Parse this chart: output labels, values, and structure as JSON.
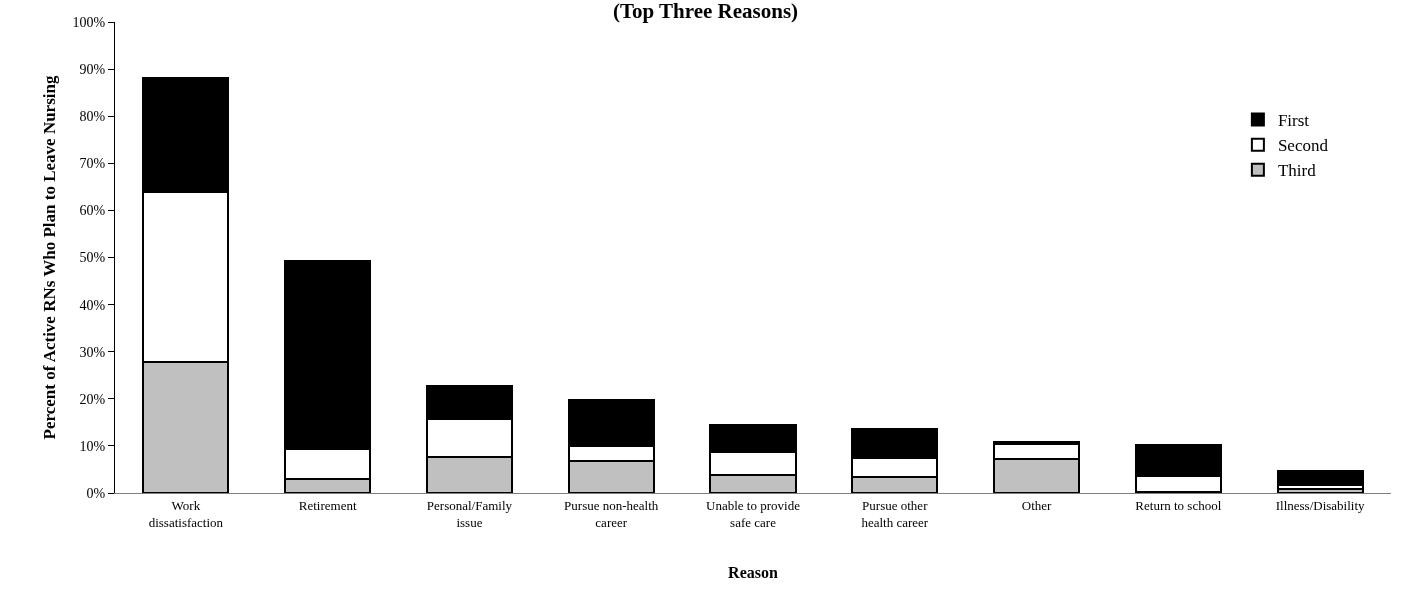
{
  "chart_data": {
    "type": "bar",
    "title": "(Top Three Reasons)",
    "xlabel": "Reason",
    "ylabel": "Percent of Active RNs Who Plan to Leave Nursing",
    "categories": [
      "Work dissatisfaction",
      "Retirement",
      "Personal/Family issue",
      "Pursue non-health career",
      "Unable to provide safe care",
      "Pursue other health career",
      "Other",
      "Return to school",
      "Illness/Disability"
    ],
    "stacked": true,
    "series": [
      {
        "name": "Third",
        "color": "#c0c0c0",
        "values": [
          27.8,
          2.9,
          7.6,
          6.8,
          3.8,
          3.4,
          7.2,
          0.3,
          0.8
        ]
      },
      {
        "name": "Second",
        "color": "#ffffff",
        "values": [
          36.1,
          6.5,
          8.2,
          3.1,
          4.8,
          4.0,
          3.3,
          3.3,
          1.0
        ]
      },
      {
        "name": "First",
        "color": "#000000",
        "values": [
          24.2,
          39.9,
          7.0,
          9.9,
          5.8,
          6.2,
          0.4,
          6.6,
          2.9
        ]
      }
    ],
    "ylim": [
      0,
      100
    ],
    "yticks": [
      {
        "value": 0,
        "label": "0%"
      },
      {
        "value": 10,
        "label": "10%"
      },
      {
        "value": 20,
        "label": "20%"
      },
      {
        "value": 30,
        "label": "30%"
      },
      {
        "value": 40,
        "label": "40%"
      },
      {
        "value": 50,
        "label": "50%"
      },
      {
        "value": 60,
        "label": "60%"
      },
      {
        "value": 70,
        "label": "70%"
      },
      {
        "value": 80,
        "label": "80%"
      },
      {
        "value": 90,
        "label": "90%"
      },
      {
        "value": 100,
        "label": "100%"
      }
    ],
    "grid": false,
    "legend": "top right"
  }
}
